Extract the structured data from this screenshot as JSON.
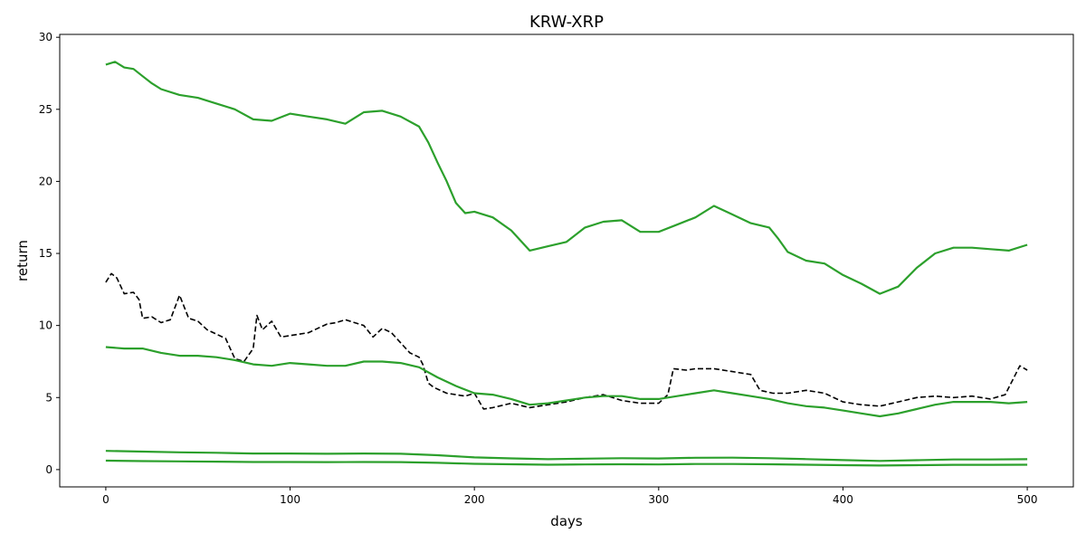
{
  "chart_data": {
    "type": "line",
    "title": "KRW-XRP",
    "xlabel": "days",
    "ylabel": "return",
    "xlim": [
      -25,
      525
    ],
    "ylim": [
      -1.2,
      30.2
    ],
    "xticks": [
      0,
      100,
      200,
      300,
      400,
      500
    ],
    "yticks": [
      0,
      5,
      10,
      15,
      20,
      25,
      30
    ],
    "grid": false,
    "colors": {
      "band": "#2ca02c",
      "price": "#000000"
    },
    "series": [
      {
        "style": "dashed",
        "color": "#000000",
        "points": [
          [
            0,
            13.0
          ],
          [
            3,
            13.6
          ],
          [
            6,
            13.3
          ],
          [
            10,
            12.2
          ],
          [
            15,
            12.3
          ],
          [
            18,
            11.8
          ],
          [
            20,
            10.5
          ],
          [
            25,
            10.6
          ],
          [
            30,
            10.2
          ],
          [
            35,
            10.4
          ],
          [
            40,
            12.1
          ],
          [
            45,
            10.5
          ],
          [
            50,
            10.3
          ],
          [
            55,
            9.7
          ],
          [
            60,
            9.4
          ],
          [
            65,
            9.1
          ],
          [
            70,
            7.7
          ],
          [
            75,
            7.5
          ],
          [
            80,
            8.4
          ],
          [
            82,
            10.7
          ],
          [
            85,
            9.7
          ],
          [
            90,
            10.3
          ],
          [
            95,
            9.2
          ],
          [
            100,
            9.3
          ],
          [
            105,
            9.4
          ],
          [
            110,
            9.5
          ],
          [
            115,
            9.8
          ],
          [
            120,
            10.1
          ],
          [
            125,
            10.2
          ],
          [
            130,
            10.4
          ],
          [
            135,
            10.2
          ],
          [
            140,
            10.0
          ],
          [
            145,
            9.2
          ],
          [
            150,
            9.8
          ],
          [
            155,
            9.5
          ],
          [
            160,
            8.8
          ],
          [
            165,
            8.1
          ],
          [
            170,
            7.8
          ],
          [
            172,
            7.3
          ],
          [
            175,
            6.0
          ],
          [
            178,
            5.7
          ],
          [
            185,
            5.3
          ],
          [
            195,
            5.1
          ],
          [
            200,
            5.3
          ],
          [
            205,
            4.2
          ],
          [
            210,
            4.3
          ],
          [
            220,
            4.6
          ],
          [
            230,
            4.3
          ],
          [
            240,
            4.5
          ],
          [
            250,
            4.7
          ],
          [
            260,
            5.0
          ],
          [
            270,
            5.2
          ],
          [
            280,
            4.8
          ],
          [
            290,
            4.6
          ],
          [
            300,
            4.6
          ],
          [
            305,
            5.2
          ],
          [
            308,
            7.0
          ],
          [
            315,
            6.9
          ],
          [
            320,
            7.0
          ],
          [
            330,
            7.0
          ],
          [
            340,
            6.8
          ],
          [
            350,
            6.6
          ],
          [
            355,
            5.5
          ],
          [
            362,
            5.3
          ],
          [
            370,
            5.3
          ],
          [
            380,
            5.5
          ],
          [
            390,
            5.3
          ],
          [
            400,
            4.7
          ],
          [
            410,
            4.5
          ],
          [
            420,
            4.4
          ],
          [
            430,
            4.7
          ],
          [
            440,
            5.0
          ],
          [
            450,
            5.1
          ],
          [
            460,
            5.0
          ],
          [
            470,
            5.1
          ],
          [
            480,
            4.9
          ],
          [
            488,
            5.2
          ],
          [
            492,
            6.2
          ],
          [
            496,
            7.2
          ],
          [
            500,
            6.9
          ]
        ]
      },
      {
        "style": "solid",
        "color": "#2ca02c",
        "points": [
          [
            0,
            28.1
          ],
          [
            5,
            28.3
          ],
          [
            10,
            27.9
          ],
          [
            15,
            27.8
          ],
          [
            20,
            27.3
          ],
          [
            25,
            26.8
          ],
          [
            30,
            26.4
          ],
          [
            40,
            26.0
          ],
          [
            50,
            25.8
          ],
          [
            60,
            25.4
          ],
          [
            70,
            25.0
          ],
          [
            80,
            24.3
          ],
          [
            90,
            24.2
          ],
          [
            100,
            24.7
          ],
          [
            110,
            24.5
          ],
          [
            120,
            24.3
          ],
          [
            130,
            24.0
          ],
          [
            140,
            24.8
          ],
          [
            150,
            24.9
          ],
          [
            160,
            24.5
          ],
          [
            170,
            23.8
          ],
          [
            175,
            22.7
          ],
          [
            180,
            21.3
          ],
          [
            185,
            20.0
          ],
          [
            190,
            18.5
          ],
          [
            195,
            17.8
          ],
          [
            200,
            17.9
          ],
          [
            210,
            17.5
          ],
          [
            220,
            16.6
          ],
          [
            230,
            15.2
          ],
          [
            240,
            15.5
          ],
          [
            250,
            15.8
          ],
          [
            260,
            16.8
          ],
          [
            270,
            17.2
          ],
          [
            280,
            17.3
          ],
          [
            290,
            16.5
          ],
          [
            300,
            16.5
          ],
          [
            310,
            17.0
          ],
          [
            320,
            17.5
          ],
          [
            330,
            18.3
          ],
          [
            340,
            17.7
          ],
          [
            350,
            17.1
          ],
          [
            360,
            16.8
          ],
          [
            365,
            16.0
          ],
          [
            370,
            15.1
          ],
          [
            380,
            14.5
          ],
          [
            390,
            14.3
          ],
          [
            400,
            13.5
          ],
          [
            410,
            12.9
          ],
          [
            420,
            12.2
          ],
          [
            430,
            12.7
          ],
          [
            440,
            14.0
          ],
          [
            450,
            15.0
          ],
          [
            460,
            15.4
          ],
          [
            470,
            15.4
          ],
          [
            480,
            15.3
          ],
          [
            490,
            15.2
          ],
          [
            500,
            15.6
          ]
        ]
      },
      {
        "style": "solid",
        "color": "#2ca02c",
        "points": [
          [
            0,
            8.5
          ],
          [
            10,
            8.4
          ],
          [
            20,
            8.4
          ],
          [
            30,
            8.1
          ],
          [
            40,
            7.9
          ],
          [
            50,
            7.9
          ],
          [
            60,
            7.8
          ],
          [
            70,
            7.6
          ],
          [
            80,
            7.3
          ],
          [
            90,
            7.2
          ],
          [
            100,
            7.4
          ],
          [
            110,
            7.3
          ],
          [
            120,
            7.2
          ],
          [
            130,
            7.2
          ],
          [
            140,
            7.5
          ],
          [
            150,
            7.5
          ],
          [
            160,
            7.4
          ],
          [
            170,
            7.1
          ],
          [
            180,
            6.4
          ],
          [
            190,
            5.8
          ],
          [
            200,
            5.3
          ],
          [
            210,
            5.2
          ],
          [
            220,
            4.9
          ],
          [
            230,
            4.5
          ],
          [
            240,
            4.6
          ],
          [
            250,
            4.8
          ],
          [
            260,
            5.0
          ],
          [
            270,
            5.1
          ],
          [
            280,
            5.1
          ],
          [
            290,
            4.9
          ],
          [
            300,
            4.9
          ],
          [
            310,
            5.1
          ],
          [
            320,
            5.3
          ],
          [
            330,
            5.5
          ],
          [
            340,
            5.3
          ],
          [
            350,
            5.1
          ],
          [
            360,
            4.9
          ],
          [
            370,
            4.6
          ],
          [
            380,
            4.4
          ],
          [
            390,
            4.3
          ],
          [
            400,
            4.1
          ],
          [
            410,
            3.9
          ],
          [
            420,
            3.7
          ],
          [
            430,
            3.9
          ],
          [
            440,
            4.2
          ],
          [
            450,
            4.5
          ],
          [
            460,
            4.7
          ],
          [
            470,
            4.7
          ],
          [
            480,
            4.7
          ],
          [
            490,
            4.6
          ],
          [
            500,
            4.7
          ]
        ]
      },
      {
        "style": "solid",
        "color": "#2ca02c",
        "points": [
          [
            0,
            1.3
          ],
          [
            20,
            1.25
          ],
          [
            40,
            1.2
          ],
          [
            60,
            1.17
          ],
          [
            80,
            1.12
          ],
          [
            100,
            1.12
          ],
          [
            120,
            1.1
          ],
          [
            140,
            1.12
          ],
          [
            160,
            1.1
          ],
          [
            180,
            1.0
          ],
          [
            200,
            0.85
          ],
          [
            220,
            0.78
          ],
          [
            240,
            0.72
          ],
          [
            260,
            0.76
          ],
          [
            280,
            0.79
          ],
          [
            300,
            0.77
          ],
          [
            320,
            0.82
          ],
          [
            340,
            0.83
          ],
          [
            360,
            0.79
          ],
          [
            380,
            0.73
          ],
          [
            400,
            0.66
          ],
          [
            420,
            0.6
          ],
          [
            440,
            0.65
          ],
          [
            460,
            0.7
          ],
          [
            480,
            0.7
          ],
          [
            500,
            0.72
          ]
        ]
      },
      {
        "style": "solid",
        "color": "#2ca02c",
        "points": [
          [
            0,
            0.62
          ],
          [
            20,
            0.59
          ],
          [
            40,
            0.57
          ],
          [
            60,
            0.55
          ],
          [
            80,
            0.53
          ],
          [
            100,
            0.53
          ],
          [
            120,
            0.52
          ],
          [
            140,
            0.53
          ],
          [
            160,
            0.52
          ],
          [
            180,
            0.47
          ],
          [
            200,
            0.4
          ],
          [
            220,
            0.37
          ],
          [
            240,
            0.34
          ],
          [
            260,
            0.36
          ],
          [
            280,
            0.37
          ],
          [
            300,
            0.36
          ],
          [
            320,
            0.39
          ],
          [
            340,
            0.39
          ],
          [
            360,
            0.37
          ],
          [
            380,
            0.34
          ],
          [
            400,
            0.31
          ],
          [
            420,
            0.28
          ],
          [
            440,
            0.31
          ],
          [
            460,
            0.33
          ],
          [
            480,
            0.33
          ],
          [
            500,
            0.34
          ]
        ]
      }
    ]
  }
}
